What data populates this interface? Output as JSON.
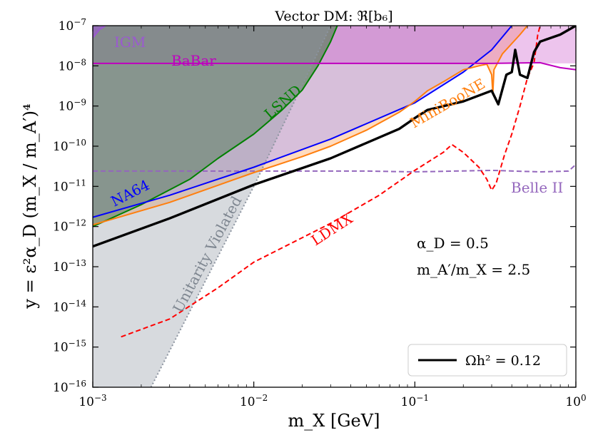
{
  "chart_data": {
    "type": "line",
    "title": "Vector DM: ℜ[b₆]",
    "xlabel": "m_X [GeV]",
    "ylabel": "y = ε²α_D (m_X / m_A′)⁴",
    "xscale": "log",
    "yscale": "log",
    "xlim": [
      0.001,
      1
    ],
    "ylim": [
      1e-16,
      1e-07
    ],
    "x_ticks": [
      {
        "value": 0.001,
        "base": "10",
        "exp": "−3"
      },
      {
        "value": 0.01,
        "base": "10",
        "exp": "−2"
      },
      {
        "value": 0.1,
        "base": "10",
        "exp": "−1"
      },
      {
        "value": 1,
        "base": "10",
        "exp": "0"
      }
    ],
    "y_ticks": [
      {
        "value": 1e-16,
        "base": "10",
        "exp": "−16"
      },
      {
        "value": 1e-15,
        "base": "10",
        "exp": "−15"
      },
      {
        "value": 1e-14,
        "base": "10",
        "exp": "−14"
      },
      {
        "value": 1e-13,
        "base": "10",
        "exp": "−13"
      },
      {
        "value": 1e-12,
        "base": "10",
        "exp": "−12"
      },
      {
        "value": 1e-11,
        "base": "10",
        "exp": "−11"
      },
      {
        "value": 1e-10,
        "base": "10",
        "exp": "−10"
      },
      {
        "value": 1e-09,
        "base": "10",
        "exp": "−9"
      },
      {
        "value": 1e-08,
        "base": "10",
        "exp": "−8"
      },
      {
        "value": 1e-07,
        "base": "10",
        "exp": "−7"
      }
    ],
    "grid": false,
    "legend": {
      "position": "bottom-right",
      "entries": [
        {
          "label": "Ωh² = 0.12",
          "color": "#000000",
          "style": "solid"
        }
      ]
    },
    "parameters": {
      "alpha_d": "α_D = 0.5",
      "mass_ratio": "m_A′/m_X = 2.5"
    },
    "colors": {
      "relic": "#000000",
      "babar": "#bf00bf",
      "igm": "#9b59d0",
      "na64": "#0000ff",
      "lsnd": "#008000",
      "miniboone": "#ff7f0e",
      "ldmx": "#ff0000",
      "belle2": "#9467bd",
      "unitarity": "#8c94a0"
    },
    "series": [
      {
        "name": "Ωh² = 0.12",
        "style": "solid",
        "color": "#000000",
        "points": [
          [
            0.001,
            3.2e-13
          ],
          [
            0.003,
            1.6e-12
          ],
          [
            0.01,
            1.1e-11
          ],
          [
            0.03,
            5e-11
          ],
          [
            0.08,
            2.7e-10
          ],
          [
            0.1,
            5e-10
          ],
          [
            0.12,
            8e-10
          ],
          [
            0.2,
            1.3e-09
          ],
          [
            0.3,
            2.4e-09
          ],
          [
            0.33,
            1.1e-09
          ],
          [
            0.37,
            6e-09
          ],
          [
            0.4,
            7e-09
          ],
          [
            0.42,
            2.5e-08
          ],
          [
            0.45,
            6e-09
          ],
          [
            0.5,
            5e-09
          ],
          [
            0.55,
            2.2e-08
          ],
          [
            0.6,
            4e-08
          ],
          [
            0.8,
            6e-08
          ],
          [
            1,
            1e-07
          ]
        ]
      },
      {
        "name": "BaBar",
        "style": "solid",
        "color": "#bf00bf",
        "points": [
          [
            0.001,
            1.15e-08
          ],
          [
            0.3,
            1.15e-08
          ],
          [
            0.6,
            1.2e-08
          ],
          [
            0.8,
            9e-09
          ],
          [
            1,
            8e-09
          ]
        ]
      },
      {
        "name": "IGM",
        "style": "solid",
        "color": "#9b59d0",
        "points": [
          [
            0.001,
            5e-08
          ],
          [
            0.0011,
            8e-08
          ],
          [
            0.0012,
            1e-07
          ]
        ]
      },
      {
        "name": "NA64",
        "style": "solid",
        "color": "#0000ff",
        "points": [
          [
            0.001,
            1.7e-12
          ],
          [
            0.003,
            6e-12
          ],
          [
            0.01,
            3e-11
          ],
          [
            0.03,
            1.5e-10
          ],
          [
            0.1,
            1.2e-09
          ],
          [
            0.2,
            7e-09
          ],
          [
            0.3,
            2.5e-08
          ],
          [
            0.4,
            1e-07
          ]
        ]
      },
      {
        "name": "LSND",
        "style": "solid",
        "color": "#008000",
        "points": [
          [
            0.001,
            1e-12
          ],
          [
            0.002,
            3.5e-12
          ],
          [
            0.004,
            1.5e-11
          ],
          [
            0.006,
            5e-11
          ],
          [
            0.01,
            2e-10
          ],
          [
            0.015,
            8e-10
          ],
          [
            0.02,
            2.5e-09
          ],
          [
            0.025,
            1e-08
          ],
          [
            0.03,
            4e-08
          ],
          [
            0.033,
            1e-07
          ]
        ]
      },
      {
        "name": "MiniBooNE",
        "style": "solid",
        "color": "#ff7f0e",
        "points": [
          [
            0.001,
            1.1e-12
          ],
          [
            0.003,
            4e-12
          ],
          [
            0.01,
            2.2e-11
          ],
          [
            0.02,
            5.5e-11
          ],
          [
            0.03,
            1e-10
          ],
          [
            0.05,
            2.5e-10
          ],
          [
            0.08,
            7e-10
          ],
          [
            0.1,
            1.3e-09
          ],
          [
            0.12,
            2.4e-09
          ],
          [
            0.15,
            4e-09
          ],
          [
            0.2,
            8e-09
          ],
          [
            0.25,
            1e-08
          ],
          [
            0.28,
            1.1e-08
          ],
          [
            0.3,
            6e-09
          ],
          [
            0.305,
            2e-09
          ],
          [
            0.31,
            8e-09
          ],
          [
            0.35,
            2e-08
          ],
          [
            0.45,
            6e-08
          ],
          [
            0.5,
            1e-07
          ]
        ]
      },
      {
        "name": "LDMX",
        "style": "dashed",
        "color": "#ff0000",
        "points": [
          [
            0.0015,
            1.8e-15
          ],
          [
            0.003,
            5e-15
          ],
          [
            0.006,
            3e-14
          ],
          [
            0.01,
            1.3e-13
          ],
          [
            0.03,
            1.2e-12
          ],
          [
            0.06,
            6e-12
          ],
          [
            0.1,
            2.5e-11
          ],
          [
            0.15,
            7e-11
          ],
          [
            0.17,
            1.1e-10
          ],
          [
            0.2,
            7e-11
          ],
          [
            0.25,
            3e-11
          ],
          [
            0.28,
            1.5e-11
          ],
          [
            0.3,
            8e-12
          ],
          [
            0.32,
            1.2e-11
          ],
          [
            0.36,
            6e-11
          ],
          [
            0.4,
            2e-10
          ],
          [
            0.45,
            1e-09
          ],
          [
            0.5,
            5e-09
          ],
          [
            0.55,
            1.2e-08
          ],
          [
            0.58,
            6e-08
          ],
          [
            0.6,
            1e-07
          ]
        ]
      },
      {
        "name": "Belle II",
        "style": "dashed",
        "color": "#9467bd",
        "points": [
          [
            0.001,
            2.4e-11
          ],
          [
            0.05,
            2.4e-11
          ],
          [
            0.1,
            2.3e-11
          ],
          [
            0.3,
            2.5e-11
          ],
          [
            0.6,
            2.3e-11
          ],
          [
            0.9,
            2.4e-11
          ],
          [
            1,
            3.5e-11
          ]
        ]
      },
      {
        "name": "Unitarity Violated",
        "style": "dotted",
        "color": "#8c94a0",
        "points": [
          [
            0.0023,
            1e-16
          ],
          [
            0.01,
            1e-11
          ],
          [
            0.03,
            1e-07
          ]
        ]
      }
    ],
    "annotations": [
      {
        "key": "igm",
        "text": "IGM"
      },
      {
        "key": "babar",
        "text": "BaBar"
      },
      {
        "key": "lsnd",
        "text": "LSND"
      },
      {
        "key": "miniboone",
        "text": "MiniBooNE"
      },
      {
        "key": "na64",
        "text": "NA64"
      },
      {
        "key": "belle2",
        "text": "Belle II"
      },
      {
        "key": "ldmx",
        "text": "LDMX"
      },
      {
        "key": "unitarity",
        "text": "Unitarity Violated"
      }
    ]
  }
}
